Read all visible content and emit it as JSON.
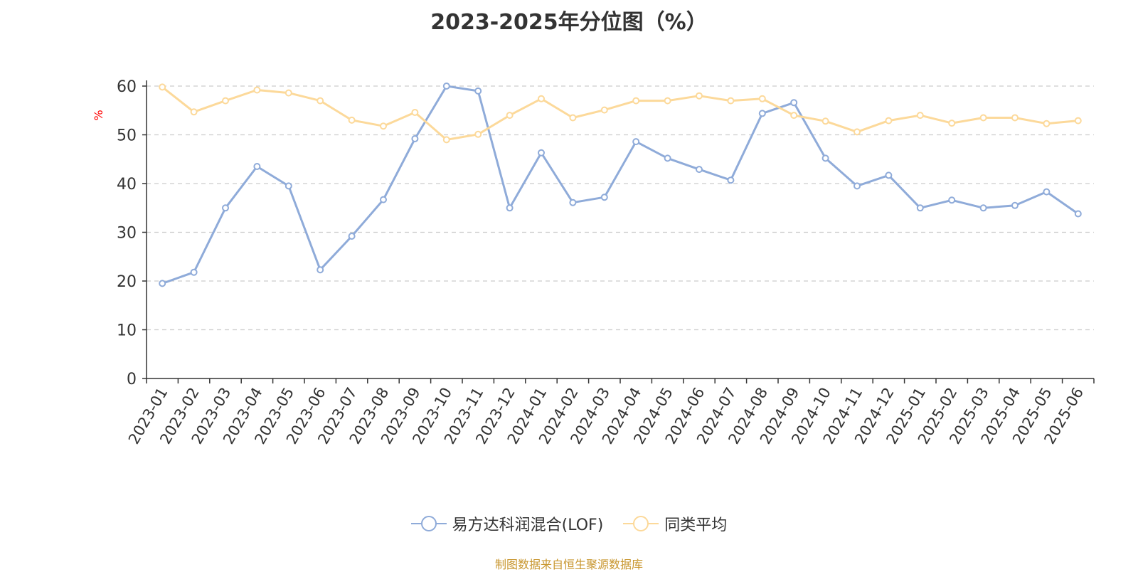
{
  "title": "2023-2025年分位图（%）",
  "footer": "制图数据来自恒生聚源数据库",
  "colors": {
    "series_1": "#8fabd9",
    "series_2": "#fcd99a",
    "grid": "#cccccc",
    "axis": "#333333",
    "ylabel": "#ff0000",
    "footer": "#c8962e"
  },
  "chart_data": {
    "type": "line",
    "title": "2023-2025年分位图（%）",
    "ylabel": "%",
    "xlabel": "",
    "ylim": [
      0,
      60
    ],
    "yticks": [
      0,
      10,
      20,
      30,
      40,
      50,
      60
    ],
    "grid": true,
    "legend_position": "bottom-center",
    "categories": [
      "2023-01",
      "2023-02",
      "2023-03",
      "2023-04",
      "2023-05",
      "2023-06",
      "2023-07",
      "2023-08",
      "2023-09",
      "2023-10",
      "2023-11",
      "2023-12",
      "2024-01",
      "2024-02",
      "2024-03",
      "2024-04",
      "2024-05",
      "2024-06",
      "2024-07",
      "2024-08",
      "2024-09",
      "2024-10",
      "2024-11",
      "2024-12",
      "2025-01",
      "2025-02",
      "2025-03",
      "2025-04",
      "2025-05",
      "2025-06"
    ],
    "series": [
      {
        "name": "易方达科润混合(LOF)",
        "values": [
          19.5,
          21.8,
          35.0,
          43.5,
          39.5,
          22.3,
          29.2,
          36.7,
          49.2,
          60.0,
          59.0,
          35.0,
          46.3,
          36.1,
          37.2,
          48.6,
          45.2,
          42.9,
          40.7,
          54.4,
          56.6,
          45.2,
          39.5,
          41.7,
          35.0,
          36.6,
          35.0,
          35.5,
          38.3,
          33.8
        ]
      },
      {
        "name": "同类平均",
        "values": [
          59.8,
          54.7,
          57.0,
          59.2,
          58.6,
          57.0,
          53.0,
          51.8,
          54.6,
          49.0,
          50.1,
          54.0,
          57.4,
          53.5,
          55.1,
          57.0,
          57.0,
          58.0,
          57.0,
          57.4,
          54.0,
          52.8,
          50.6,
          52.9,
          54.0,
          52.4,
          53.5,
          53.5,
          52.3,
          52.9
        ]
      }
    ]
  }
}
